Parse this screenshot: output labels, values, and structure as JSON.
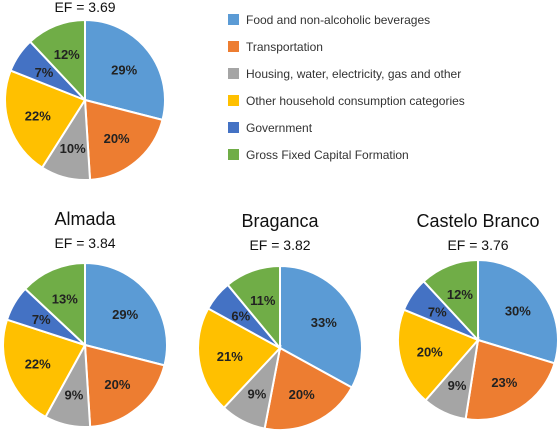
{
  "legend": [
    {
      "name": "Food and non-alcoholic beverages",
      "color": "#5b9bd5"
    },
    {
      "name": "Transportation",
      "color": "#ed7d31"
    },
    {
      "name": "Housing, water, electricity, gas and other",
      "color": "#a5a5a5"
    },
    {
      "name": "Other household  consumption categories",
      "color": "#ffc000"
    },
    {
      "name": "Government",
      "color": "#4472c4"
    },
    {
      "name": "Gross Fixed Capital Formation",
      "color": "#70ad47"
    }
  ],
  "chart_data": [
    {
      "type": "pie",
      "title": "",
      "subtitle": "EF = 3.69",
      "categories": [
        "Food and non-alcoholic beverages",
        "Transportation",
        "Housing, water, electricity, gas and other",
        "Other household  consumption categories",
        "Government",
        "Gross Fixed Capital Formation"
      ],
      "values": [
        29,
        20,
        10,
        22,
        7,
        12
      ],
      "labels": [
        "29%",
        "20%",
        "10%",
        "22%",
        "7%",
        "12%"
      ]
    },
    {
      "type": "pie",
      "title": "Almada",
      "subtitle": "EF = 3.84",
      "categories": [
        "Food and non-alcoholic beverages",
        "Transportation",
        "Housing, water, electricity, gas and other",
        "Other household  consumption categories",
        "Government",
        "Gross Fixed Capital Formation"
      ],
      "values": [
        29,
        20,
        9,
        22,
        7,
        13
      ],
      "labels": [
        "29%",
        "20%",
        "9%",
        "22%",
        "7%",
        "13%"
      ]
    },
    {
      "type": "pie",
      "title": "Braganca",
      "subtitle": "EF = 3.82",
      "categories": [
        "Food and non-alcoholic beverages",
        "Transportation",
        "Housing, water, electricity, gas and other",
        "Other household  consumption categories",
        "Government",
        "Gross Fixed Capital Formation"
      ],
      "values": [
        33,
        20,
        9,
        21,
        6,
        11
      ],
      "labels": [
        "33%",
        "20%",
        "9%",
        "21%",
        "6%",
        "11%"
      ]
    },
    {
      "type": "pie",
      "title": "Castelo Branco",
      "subtitle": "EF = 3.76",
      "categories": [
        "Food and non-alcoholic beverages",
        "Transportation",
        "Housing, water, electricity, gas and other",
        "Other household  consumption categories",
        "Government",
        "Gross Fixed Capital Formation"
      ],
      "values": [
        30,
        23,
        9,
        20,
        7,
        12
      ],
      "labels": [
        "30%",
        "23%",
        "9%",
        "20%",
        "7%",
        "12%"
      ]
    }
  ]
}
